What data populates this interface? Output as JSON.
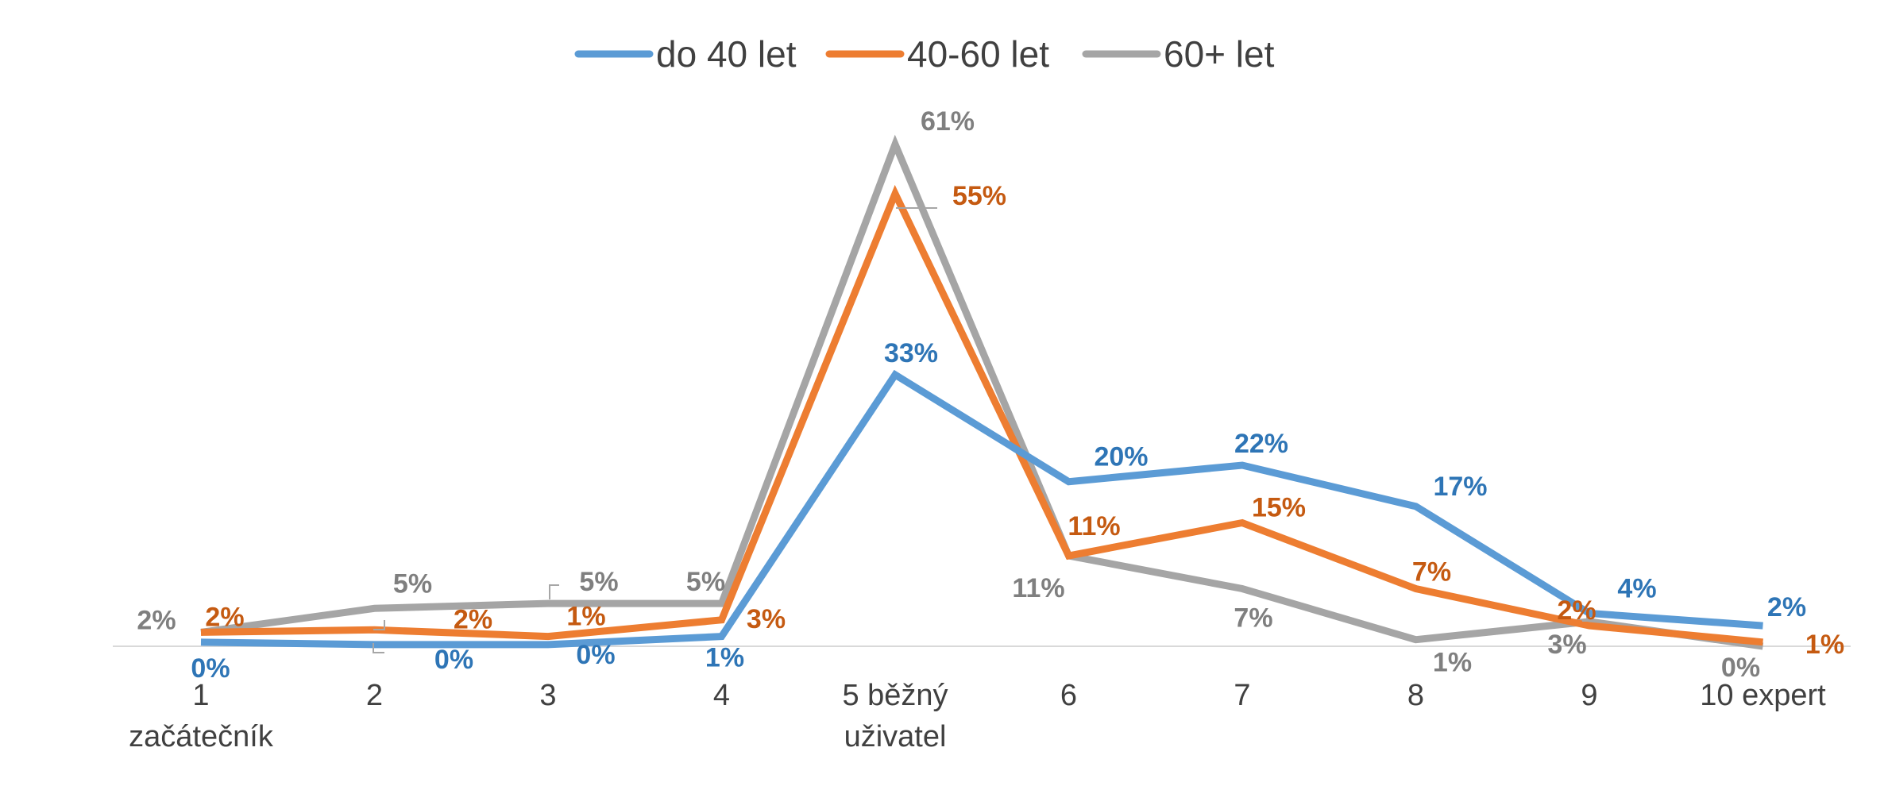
{
  "chart_data": {
    "type": "line",
    "title": "",
    "xlabel": "",
    "ylabel": "",
    "ylim": [
      0,
      0.66
    ],
    "grid": false,
    "legend_position": "top",
    "categories": [
      [
        "1",
        "začátečník"
      ],
      [
        "2"
      ],
      [
        "3"
      ],
      [
        "4"
      ],
      [
        "5 běžný",
        "uživatel"
      ],
      [
        "6"
      ],
      [
        "7"
      ],
      [
        "8"
      ],
      [
        "9"
      ],
      [
        "10 expert"
      ]
    ],
    "series": [
      {
        "name": "do 40 let",
        "color": "#5B9BD5",
        "label_color": "#2E75B6",
        "values": [
          0.005,
          0.002,
          0.002,
          0.012,
          0.33,
          0.2,
          0.22,
          0.17,
          0.04,
          0.025
        ],
        "labels": [
          "0%",
          "0%",
          "0%",
          "1%",
          "33%",
          "20%",
          "22%",
          "17%",
          "4%",
          "2%"
        ]
      },
      {
        "name": "40-60 let",
        "color": "#ED7D31",
        "label_color": "#C55A11",
        "values": [
          0.017,
          0.02,
          0.012,
          0.032,
          0.55,
          0.11,
          0.15,
          0.07,
          0.025,
          0.005
        ],
        "labels": [
          "2%",
          "2%",
          "1%",
          "3%",
          "55%",
          "11%",
          "15%",
          "7%",
          "2%",
          "1%"
        ]
      },
      {
        "name": "60+ let",
        "color": "#A5A5A5",
        "label_color": "#7F7F7F",
        "values": [
          0.017,
          0.046,
          0.052,
          0.052,
          0.61,
          0.11,
          0.07,
          0.008,
          0.03,
          0.0
        ],
        "labels": [
          "2%",
          "5%",
          "5%",
          "5%",
          "61%",
          "11%",
          "7%",
          "1%",
          "3%",
          "0%"
        ]
      }
    ]
  }
}
